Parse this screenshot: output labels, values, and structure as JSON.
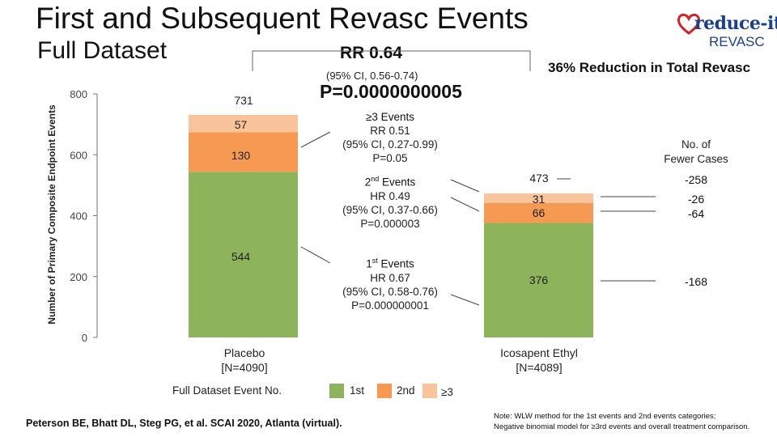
{
  "header": {
    "title": "First and Subsequent Revasc Events",
    "subtitle": "Full Dataset"
  },
  "logo": {
    "main_text": "reduce-it",
    "sub_text": "REVASC",
    "heart_color": "#d62027",
    "text_color": "#1b3f8f"
  },
  "summary": {
    "rr_label": "RR 0.64",
    "rr_ci": "(95% CI, 0.56-0.74)",
    "reduction_label": "36% Reduction in Total Revasc",
    "p_value": "P=0.0000000005"
  },
  "chart_data": {
    "type": "bar",
    "stacked": true,
    "categories": [
      "Placebo [N=4090]",
      "Icosapent Ethyl [N=4089]"
    ],
    "category_lines": [
      [
        "Placebo",
        "[N=4090]"
      ],
      [
        "Icosapent Ethyl",
        "[N=4089]"
      ]
    ],
    "series": [
      {
        "name": "1st",
        "values": [
          544,
          376
        ],
        "color": "#8db45a"
      },
      {
        "name": "2nd",
        "values": [
          130,
          66
        ],
        "color": "#f69a53"
      },
      {
        "name": "≥3",
        "values": [
          57,
          31
        ],
        "color": "#f9c49b"
      }
    ],
    "totals": [
      731,
      473
    ],
    "ylabel": "Number of Primary Composite Endpoint Events",
    "ylim": [
      0,
      800
    ],
    "yticks": [
      0,
      200,
      400,
      600,
      800
    ],
    "grid": false,
    "legend": {
      "title": "Full Dataset Event No.",
      "items": [
        "1st",
        "2nd",
        "≥3"
      ],
      "placement": "bottom"
    }
  },
  "event_stats": {
    "third": {
      "title": "≥3 Events",
      "line1": "RR 0.51",
      "line2": "(95% CI, 0.27-0.99)",
      "line3": "P=0.05"
    },
    "second": {
      "title_main": "2",
      "title_sup": "nd",
      "title_rest": " Events",
      "line1": "HR 0.49",
      "line2": "(95% CI, 0.37-0.66)",
      "line3": "P=0.000003"
    },
    "first": {
      "title_main": "1",
      "title_sup": "st",
      "title_rest": " Events",
      "line1": "HR 0.67",
      "line2": "(95% CI, 0.58-0.76)",
      "line3": "P=0.000000001"
    }
  },
  "fewer_cases": {
    "header_line1": "No. of",
    "header_line2": "Fewer Cases",
    "total": "-258",
    "third": "-26",
    "second": "-64",
    "first": "-168"
  },
  "footer": {
    "citation": "Peterson BE, Bhatt DL, Steg PG, et al. SCAI 2020, Atlanta (virtual).",
    "note_line1": "Note: WLW method for the 1st events and 2nd events categories;",
    "note_line2": "Negative binomial model for ≥3rd events and overall treatment comparison."
  }
}
